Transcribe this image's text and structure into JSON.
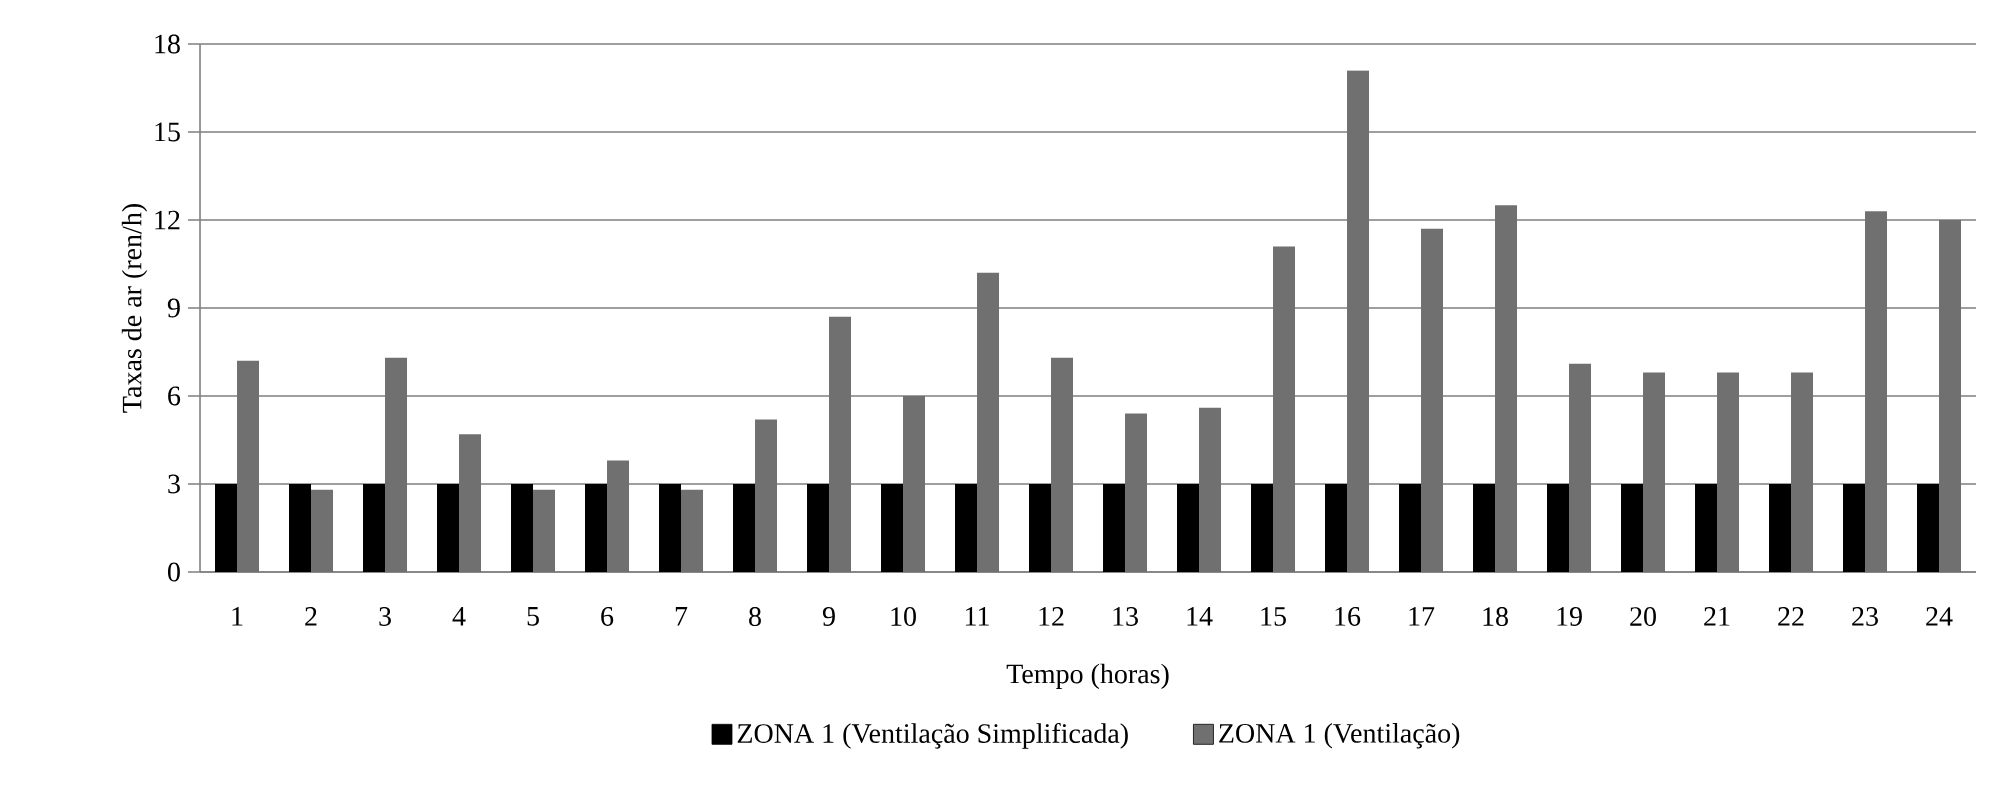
{
  "chart_data": {
    "type": "bar",
    "xlabel": "Tempo (horas)",
    "ylabel": "Taxas de ar (ren/h)",
    "categories": [
      "1",
      "2",
      "3",
      "4",
      "5",
      "6",
      "7",
      "8",
      "9",
      "10",
      "11",
      "12",
      "13",
      "14",
      "15",
      "16",
      "17",
      "18",
      "19",
      "20",
      "21",
      "22",
      "23",
      "24"
    ],
    "series": [
      {
        "name": "ZONA 1 (Ventilação Simplificada)",
        "color": "#000000",
        "values": [
          3,
          3,
          3,
          3,
          3,
          3,
          3,
          3,
          3,
          3,
          3,
          3,
          3,
          3,
          3,
          3,
          3,
          3,
          3,
          3,
          3,
          3,
          3,
          3
        ]
      },
      {
        "name": "ZONA 1 (Ventilação)",
        "color": "#707070",
        "values": [
          7.2,
          2.8,
          7.3,
          4.7,
          2.8,
          3.8,
          2.8,
          5.2,
          8.7,
          6,
          10.2,
          7.3,
          5.4,
          5.6,
          11.1,
          17.1,
          11.7,
          12.5,
          7.1,
          6.8,
          6.8,
          6.8,
          12.3,
          12
        ]
      }
    ],
    "ylim": [
      0,
      18
    ],
    "yticks": [
      0,
      3,
      6,
      9,
      12,
      15,
      18
    ],
    "grid": "y",
    "legend": "bottom"
  }
}
